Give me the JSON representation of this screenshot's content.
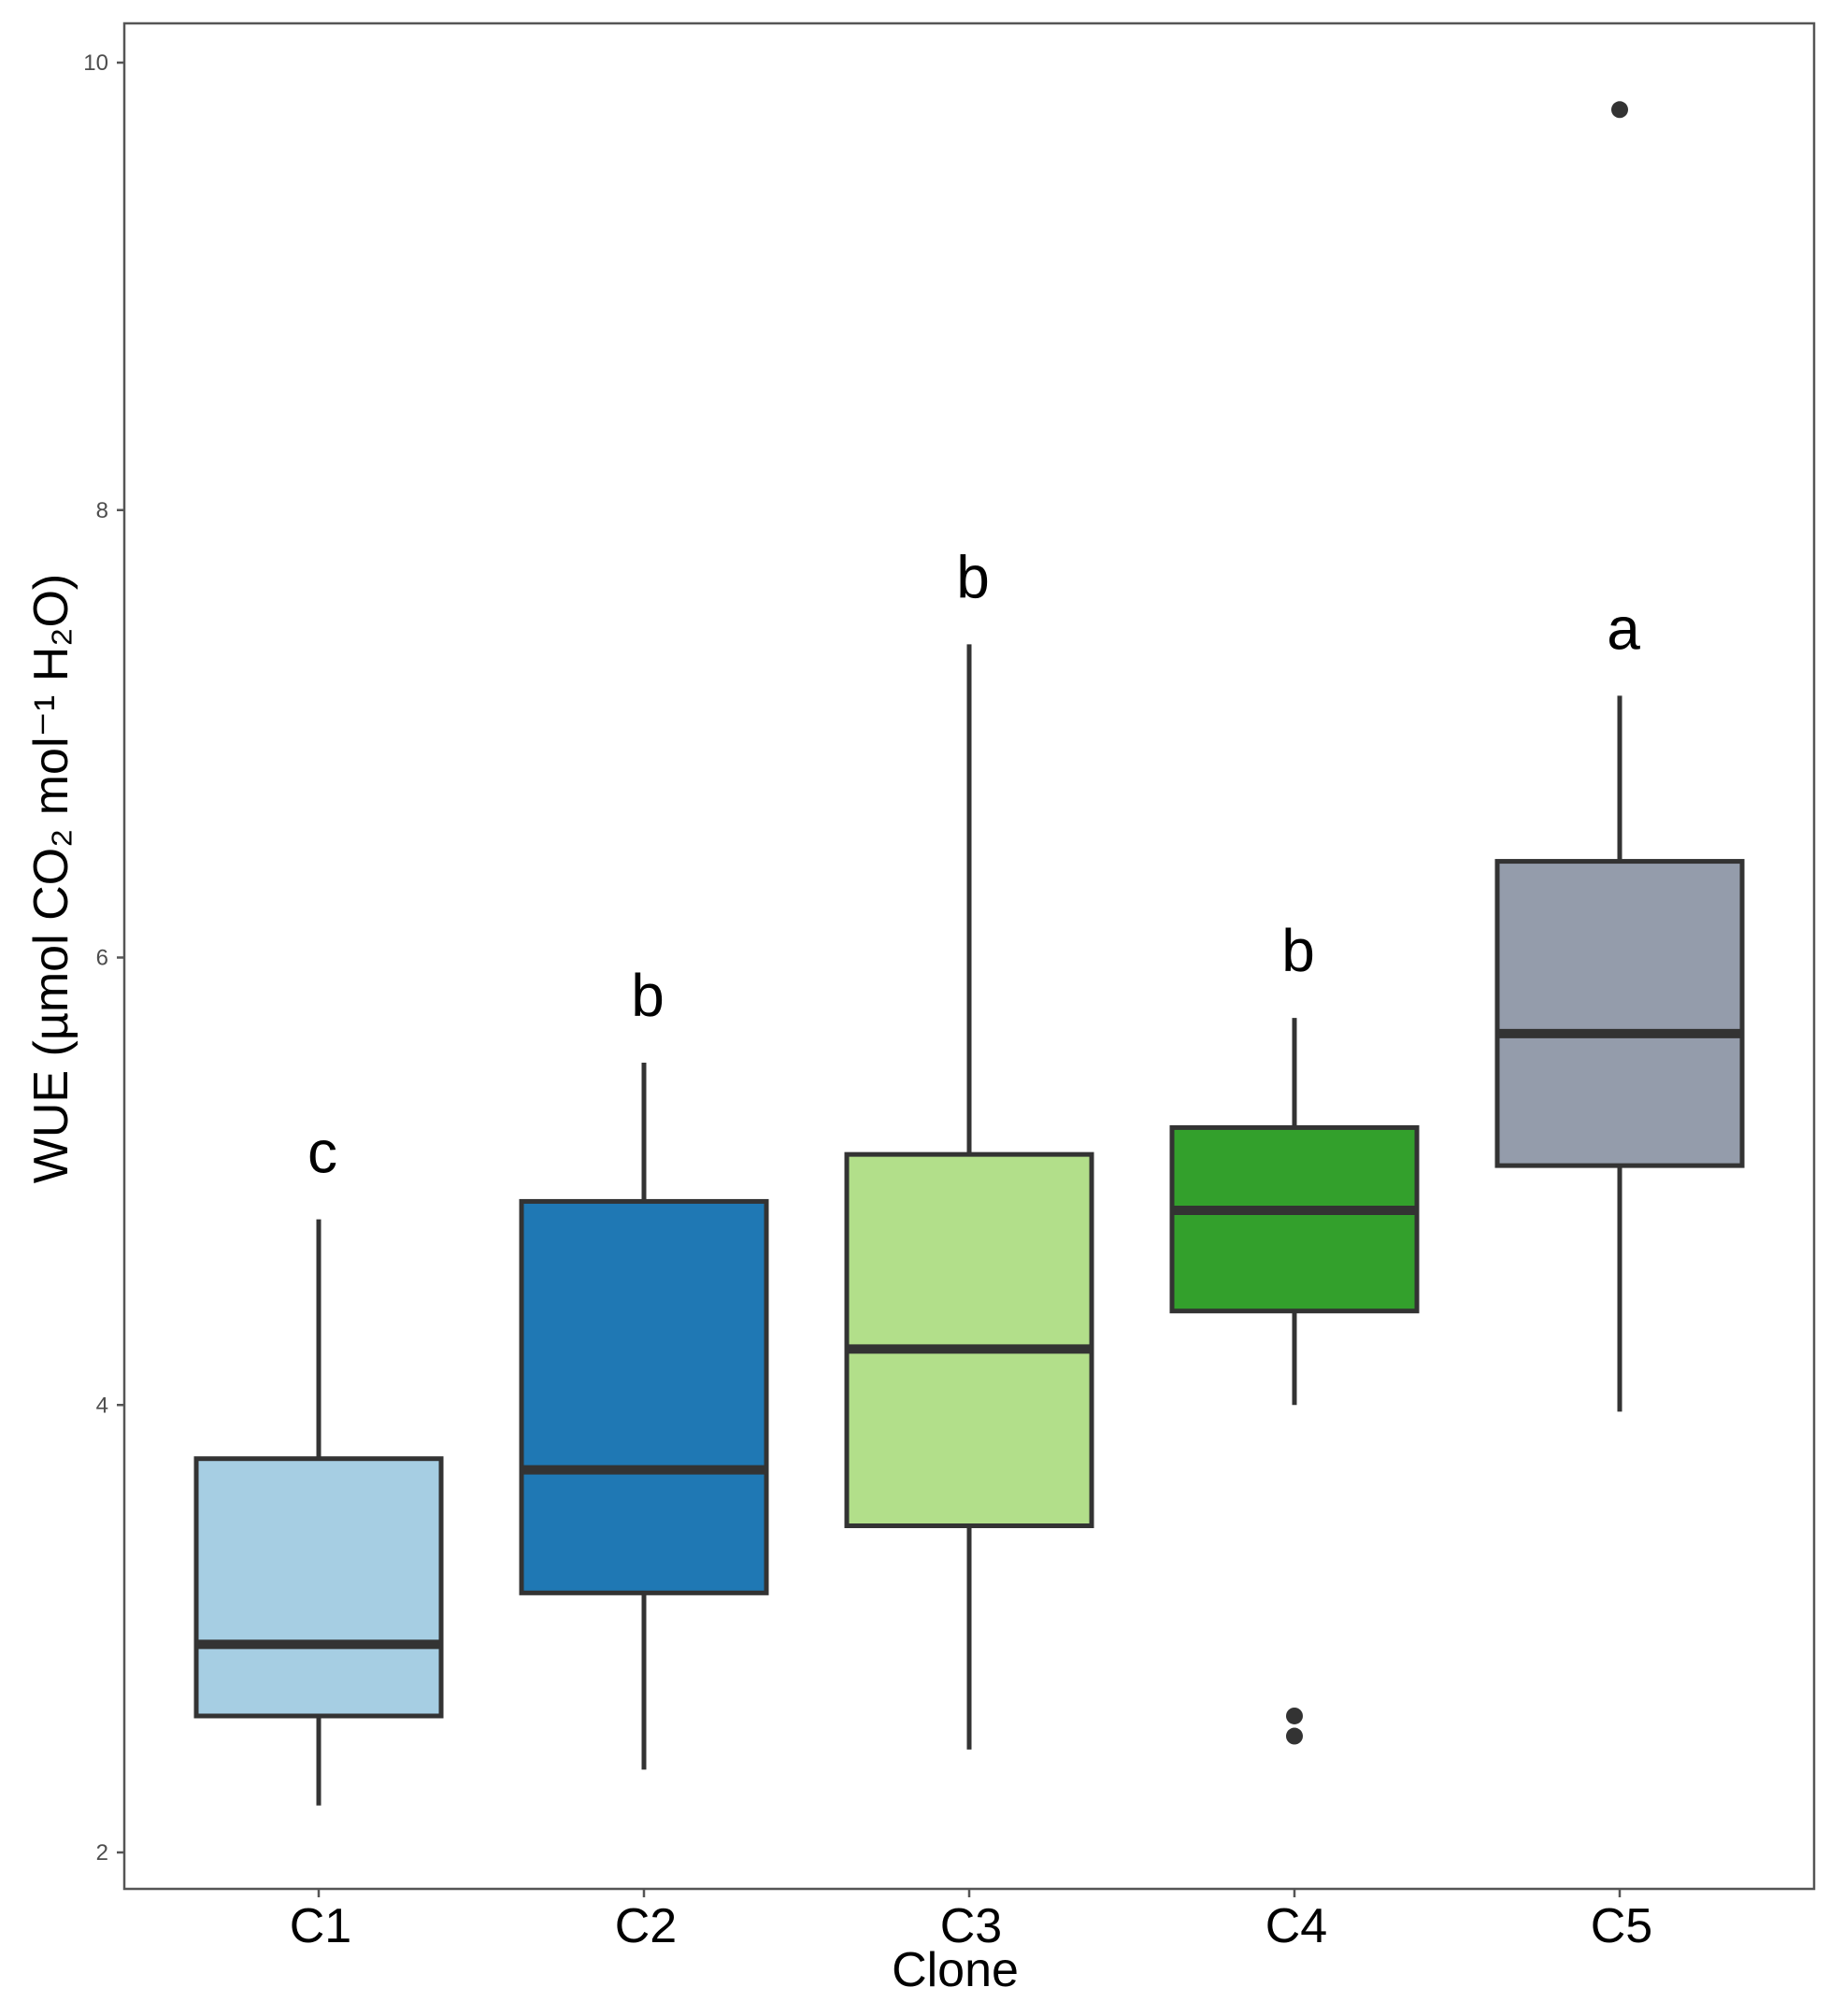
{
  "chart_data": {
    "type": "box",
    "xlabel": "Clone",
    "ylabel": "WUE (µmol CO₂ mol⁻¹  H₂O)",
    "ylim": [
      1.9,
      10.2
    ],
    "yticks": [
      2,
      4,
      6,
      8,
      10
    ],
    "grid": false,
    "categories": [
      "C1",
      "C2",
      "C3",
      "C4",
      "C5"
    ],
    "boxes": [
      {
        "category": "C1",
        "whisker_low": 2.21,
        "q1": 2.61,
        "median": 2.93,
        "q3": 3.76,
        "whisker_high": 4.83,
        "outliers": [],
        "letter": "c",
        "color": "#a6cee3"
      },
      {
        "category": "C2",
        "whisker_low": 2.37,
        "q1": 3.16,
        "median": 3.71,
        "q3": 4.91,
        "whisker_high": 5.53,
        "outliers": [],
        "letter": "b",
        "color": "#1f78b4"
      },
      {
        "category": "C3",
        "whisker_low": 2.46,
        "q1": 3.46,
        "median": 4.25,
        "q3": 5.12,
        "whisker_high": 7.4,
        "outliers": [],
        "letter": "b",
        "color": "#b2df8a"
      },
      {
        "category": "C4",
        "whisker_low": 4.0,
        "q1": 4.42,
        "median": 4.87,
        "q3": 5.24,
        "whisker_high": 5.73,
        "outliers": [
          2.61,
          2.52
        ],
        "letter": "b",
        "color": "#33a02c"
      },
      {
        "category": "C5",
        "whisker_low": 3.97,
        "q1": 5.07,
        "median": 5.66,
        "q3": 6.43,
        "whisker_high": 7.17,
        "outliers": [
          9.79
        ],
        "letter": "a",
        "color": "#949cab"
      }
    ]
  }
}
